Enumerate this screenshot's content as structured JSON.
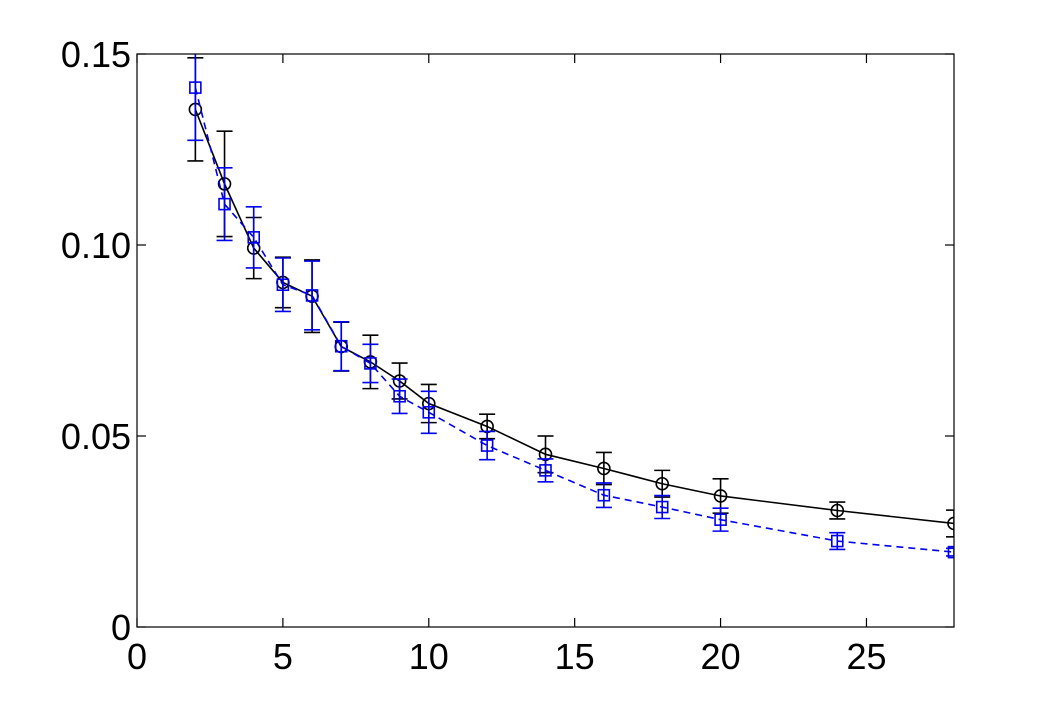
{
  "chart_data": {
    "type": "line",
    "title": "",
    "xlabel": "",
    "ylabel": "",
    "xlim": [
      0,
      28
    ],
    "ylim": [
      0,
      0.15
    ],
    "xticks": [
      0,
      5,
      10,
      15,
      20,
      25
    ],
    "xtick_labels": [
      "0",
      "5",
      "10",
      "15",
      "20",
      "25"
    ],
    "yticks": [
      0,
      0.05,
      0.1,
      0.15
    ],
    "ytick_labels": [
      "0",
      "0.05",
      "0.10",
      "0.15"
    ],
    "grid": false,
    "legend": false,
    "series": [
      {
        "color": "#000000",
        "line_style": "solid",
        "marker": "circle",
        "x": [
          2,
          3,
          4,
          5,
          6,
          7,
          8,
          9,
          10,
          12,
          14,
          16,
          18,
          20,
          24,
          28
        ],
        "y": [
          0.1355,
          0.116,
          0.0992,
          0.0902,
          0.0866,
          0.0734,
          0.0694,
          0.0644,
          0.0585,
          0.0525,
          0.0452,
          0.0415,
          0.0375,
          0.0343,
          0.0305,
          0.0271
        ],
        "err": [
          0.0135,
          0.0138,
          0.008,
          0.0066,
          0.0095,
          0.0064,
          0.007,
          0.0047,
          0.005,
          0.0032,
          0.0048,
          0.0042,
          0.0035,
          0.0045,
          0.0022,
          0.0035
        ]
      },
      {
        "color": "#0000ee",
        "line_style": "dashed",
        "marker": "square",
        "x": [
          2,
          3,
          4,
          5,
          6,
          7,
          8,
          9,
          10,
          12,
          14,
          16,
          18,
          20,
          24,
          28
        ],
        "y": [
          0.1412,
          0.1107,
          0.102,
          0.0896,
          0.0868,
          0.0735,
          0.069,
          0.0604,
          0.0562,
          0.0475,
          0.041,
          0.0345,
          0.0314,
          0.0281,
          0.0225,
          0.0196
        ],
        "err": [
          0.0138,
          0.0095,
          0.008,
          0.007,
          0.009,
          0.0064,
          0.005,
          0.0045,
          0.0055,
          0.0037,
          0.003,
          0.0032,
          0.003,
          0.003,
          0.0022,
          0.001
        ]
      }
    ]
  }
}
